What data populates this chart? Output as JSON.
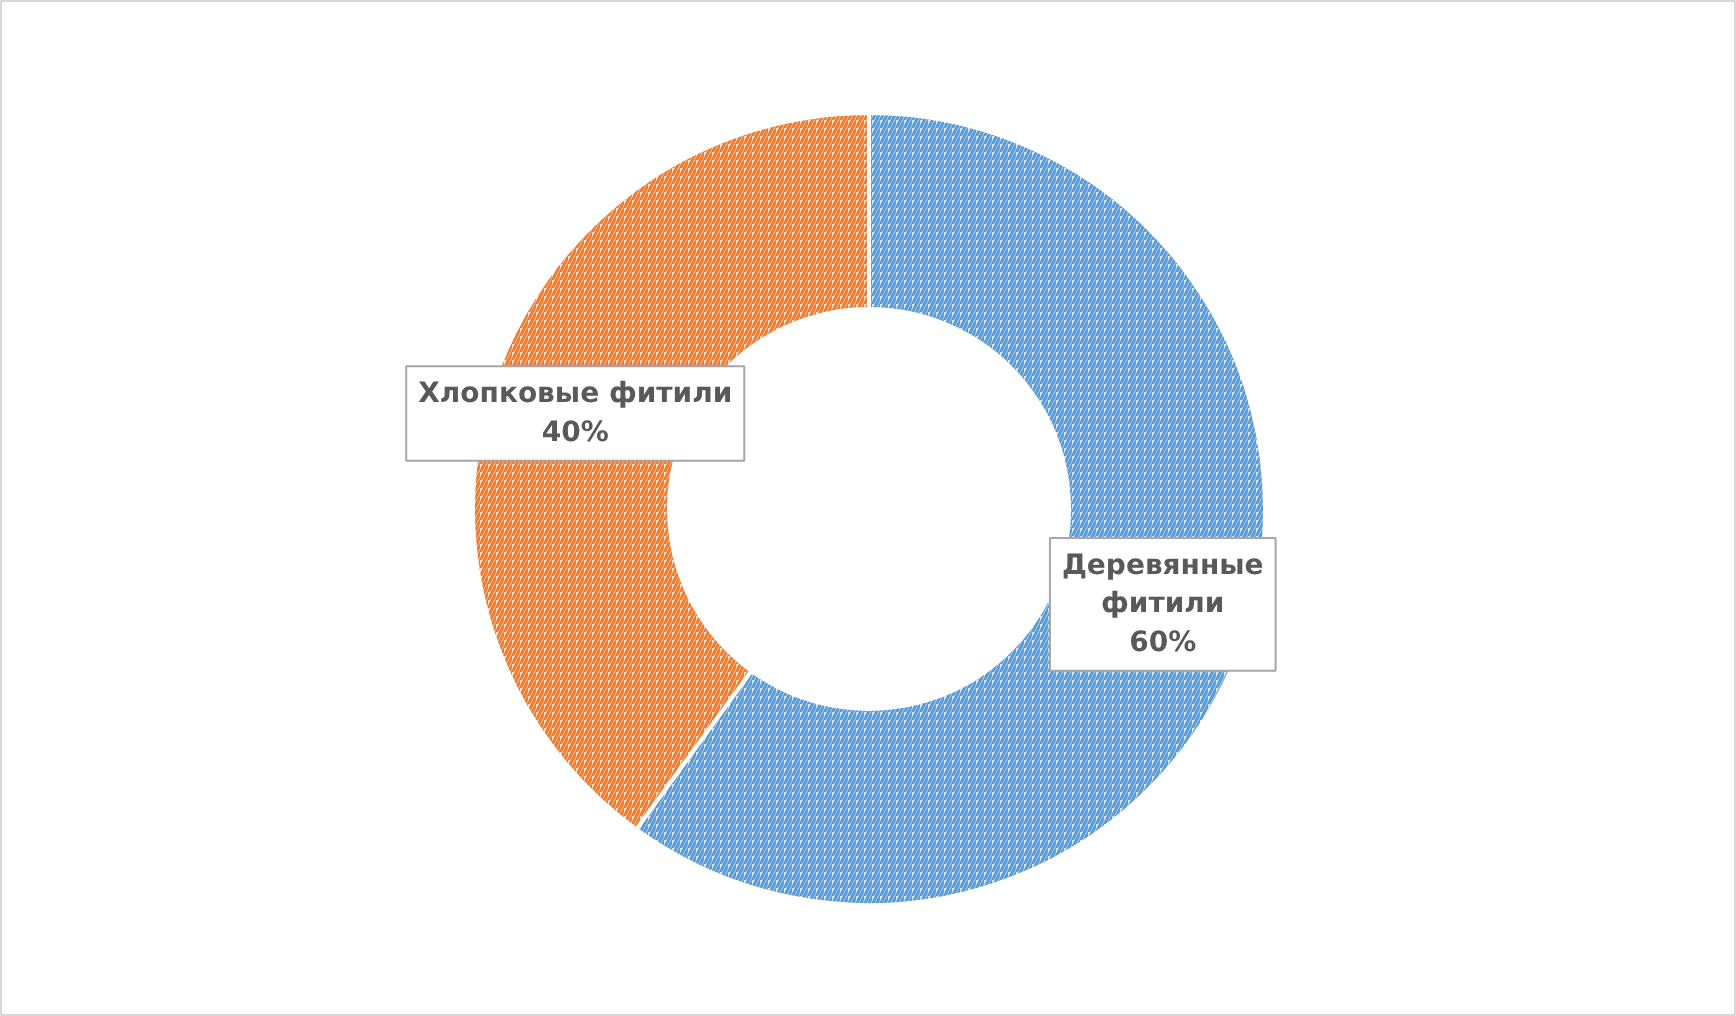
{
  "chart_data": {
    "type": "donut",
    "categories": [
      "Деревянные фитили",
      "Хлопковые фитили"
    ],
    "values": [
      60,
      40
    ],
    "colors": [
      "#5b9bd5",
      "#ed7d31"
    ],
    "value_labels": [
      "60%",
      "40%"
    ]
  }
}
